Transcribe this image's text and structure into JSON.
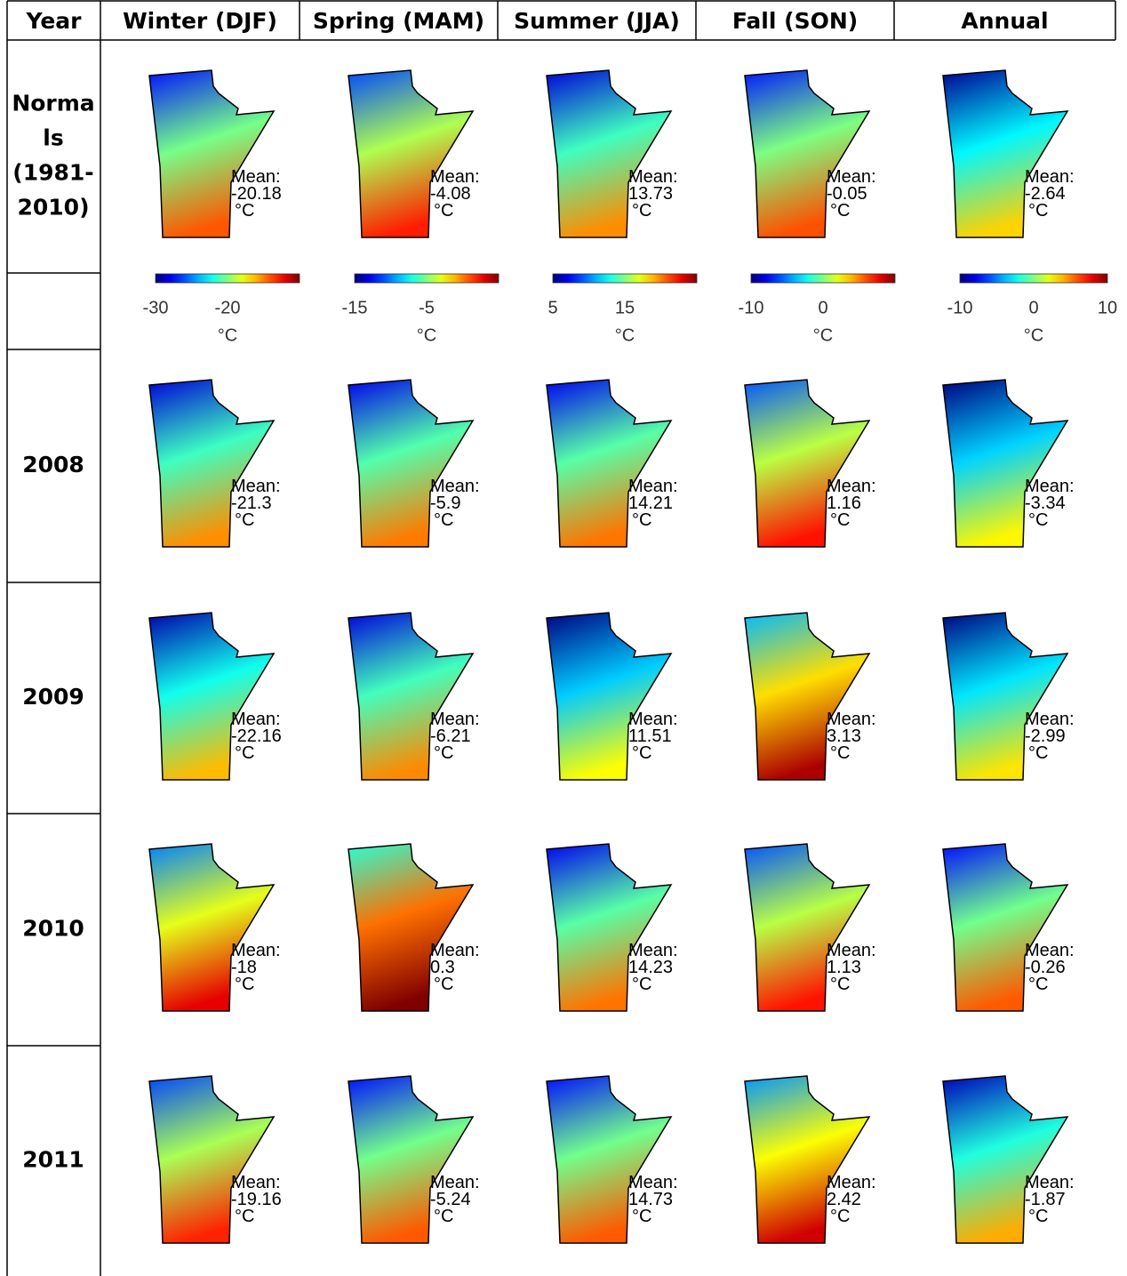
{
  "table": {
    "header": [
      "Year",
      "Winter (DJF)",
      "Spring (MAM)",
      "Summer (JJA)",
      "Fall (SON)",
      "Annual"
    ],
    "mean_label": "Mean:",
    "unit": "°C",
    "colorbars": [
      {
        "lim": [
          -30,
          -10
        ],
        "ticks": [
          -30,
          -20
        ]
      },
      {
        "lim": [
          -15,
          5
        ],
        "ticks": [
          -15,
          -5
        ]
      },
      {
        "lim": [
          5,
          25
        ],
        "ticks": [
          5,
          15
        ]
      },
      {
        "lim": [
          -10,
          10
        ],
        "ticks": [
          -10,
          0
        ]
      },
      {
        "lim": [
          -10,
          10
        ],
        "ticks": [
          -10,
          0,
          10
        ]
      }
    ],
    "rows": [
      {
        "label": [
          "Norma",
          "ls",
          "(1981-",
          "2010)"
        ],
        "means": [
          -20.18,
          -4.08,
          13.73,
          -0.05,
          -2.64
        ]
      },
      {
        "label": [
          "2008"
        ],
        "means": [
          -21.3,
          -5.9,
          14.21,
          1.16,
          -3.34
        ]
      },
      {
        "label": [
          "2009"
        ],
        "means": [
          -22.16,
          -6.21,
          11.51,
          3.13,
          -2.99
        ]
      },
      {
        "label": [
          "2010"
        ],
        "means": [
          -18,
          0.3,
          14.23,
          1.13,
          -0.26
        ]
      },
      {
        "label": [
          "2011"
        ],
        "means": [
          -19.16,
          -5.24,
          14.73,
          2.42,
          -1.87
        ]
      }
    ]
  }
}
